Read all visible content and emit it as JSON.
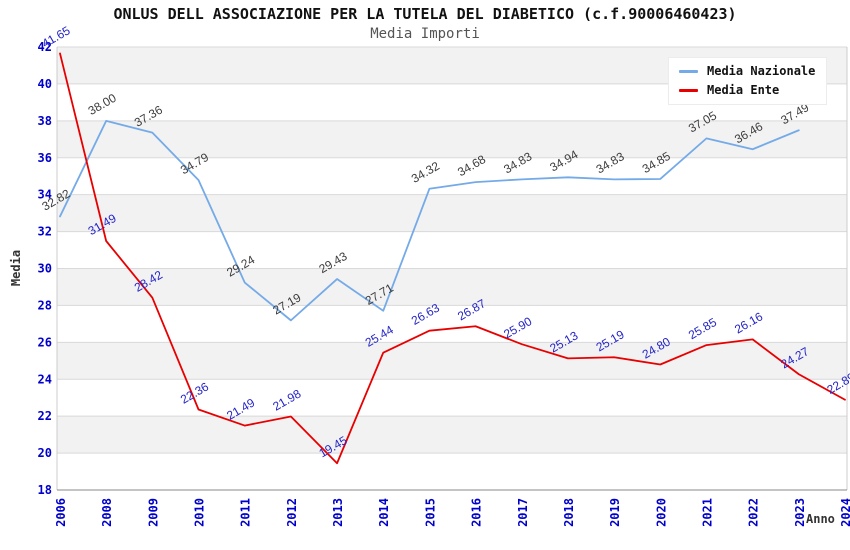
{
  "header": {
    "title": "ONLUS DELL ASSOCIAZIONE PER LA TUTELA DEL DIABETICO (c.f.90006460423)",
    "subtitle": "Media Importi"
  },
  "legend": {
    "items": [
      {
        "label": "Media Nazionale",
        "color": "#74aae8"
      },
      {
        "label": "Media Ente",
        "color": "#e80000"
      }
    ]
  },
  "chart_data": {
    "type": "line",
    "title": "ONLUS DELL ASSOCIAZIONE PER LA TUTELA DEL DIABETICO (c.f.90006460423)",
    "subtitle": "Media Importi",
    "xlabel": "Anno",
    "ylabel": "Media",
    "ylim": [
      18,
      42
    ],
    "y_step": 2,
    "grid": true,
    "legend_position": "top-right",
    "categories": [
      "2006",
      "2008",
      "2009",
      "2010",
      "2011",
      "2012",
      "2013",
      "2014",
      "2015",
      "2016",
      "2017",
      "2018",
      "2019",
      "2020",
      "2021",
      "2022",
      "2023",
      "2024"
    ],
    "series": [
      {
        "name": "Media Nazionale",
        "color": "#74aae8",
        "label_color": "#3c3c3c",
        "values": [
          32.82,
          38.0,
          37.36,
          34.79,
          29.24,
          27.19,
          29.43,
          27.71,
          34.32,
          34.68,
          34.83,
          34.94,
          34.83,
          34.85,
          37.05,
          36.46,
          37.49,
          null
        ]
      },
      {
        "name": "Media Ente",
        "color": "#e80000",
        "label_color": "#2424c8",
        "values": [
          41.65,
          31.49,
          28.42,
          22.36,
          21.49,
          21.98,
          19.45,
          25.44,
          26.63,
          26.87,
          25.9,
          25.13,
          25.19,
          24.8,
          25.85,
          26.16,
          24.27,
          22.89
        ]
      }
    ],
    "style": {
      "tick_label_color": "#0000cc",
      "band_color": "#f2f2f2",
      "grid_color": "#d9d9d9",
      "axis_line_color": "#888888",
      "border_color": "#cccccc"
    }
  }
}
